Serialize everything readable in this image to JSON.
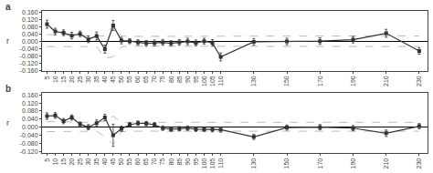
{
  "chart_data": [
    {
      "type": "line",
      "title": "a",
      "ylabel": "r",
      "x": [
        5,
        10,
        15,
        20,
        25,
        30,
        35,
        40,
        45,
        50,
        55,
        60,
        65,
        70,
        75,
        80,
        85,
        90,
        95,
        100,
        105,
        110,
        130,
        150,
        170,
        190,
        210,
        230
      ],
      "xlim": [
        2,
        235
      ],
      "xticks": [
        5,
        10,
        15,
        20,
        25,
        30,
        35,
        40,
        45,
        50,
        55,
        60,
        65,
        70,
        75,
        80,
        85,
        90,
        95,
        100,
        105,
        110,
        130,
        150,
        170,
        190,
        210,
        230
      ],
      "ylim": [
        -0.16,
        0.168
      ],
      "yticks": [
        {
          "value": 0.16,
          "label": "0.160"
        },
        {
          "value": 0.12,
          "label": "0.120"
        },
        {
          "value": 0.08,
          "label": "0.080"
        },
        {
          "value": 0.04,
          "label": "0.040"
        },
        {
          "value": 0,
          "label": "0.000"
        },
        {
          "value": -0.04,
          "label": "-0.040"
        },
        {
          "value": -0.08,
          "label": "-0.080"
        },
        {
          "value": -0.12,
          "label": "-0.120"
        },
        {
          "value": -0.16,
          "label": "-0.160"
        }
      ],
      "grid": false,
      "series": [
        {
          "values": [
            0.038,
            0.038,
            0.036,
            0.034,
            0.032,
            0.03,
            0.032,
            0.03,
            0.09,
            0.03,
            0.028,
            0.028,
            0.028,
            0.028,
            0.028,
            0.028,
            0.028,
            0.028,
            0.028,
            0.028,
            0.03,
            0.03,
            0.03,
            0.028,
            0.028,
            0.03,
            0.032,
            0.03
          ],
          "color": "#bbbbbb",
          "line_style": "dashed"
        },
        {
          "values": [
            -0.028,
            -0.028,
            -0.028,
            -0.028,
            -0.026,
            -0.026,
            -0.028,
            -0.09,
            -0.085,
            -0.028,
            -0.026,
            -0.026,
            -0.026,
            -0.026,
            -0.026,
            -0.026,
            -0.026,
            -0.026,
            -0.026,
            -0.026,
            -0.026,
            -0.028,
            -0.028,
            -0.026,
            -0.026,
            -0.026,
            -0.028,
            -0.028
          ],
          "color": "#bbbbbb",
          "line_style": "dashed"
        },
        {
          "values": [
            0.095,
            0.055,
            0.048,
            0.032,
            0.042,
            0.012,
            0.03,
            -0.042,
            0.088,
            0.005,
            0.002,
            -0.005,
            -0.01,
            -0.008,
            -0.005,
            -0.01,
            -0.005,
            0.0,
            -0.008,
            0.002,
            -0.008,
            -0.085,
            -0.002,
            0.0,
            0.002,
            0.01,
            0.045,
            -0.052
          ],
          "error_upper": [
            0.022,
            0.018,
            0.016,
            0.018,
            0.015,
            0.018,
            0.022,
            0.022,
            0.028,
            0.018,
            0.014,
            0.014,
            0.016,
            0.016,
            0.016,
            0.014,
            0.016,
            0.018,
            0.016,
            0.016,
            0.018,
            0.022,
            0.018,
            0.018,
            0.018,
            0.018,
            0.022,
            0.018
          ],
          "error_lower": [
            0.022,
            0.018,
            0.016,
            0.018,
            0.015,
            0.018,
            0.022,
            0.022,
            0.028,
            0.018,
            0.014,
            0.014,
            0.016,
            0.016,
            0.016,
            0.014,
            0.016,
            0.018,
            0.016,
            0.016,
            0.018,
            0.022,
            0.018,
            0.018,
            0.018,
            0.018,
            0.022,
            0.018
          ],
          "color": "#333333",
          "marker": "square",
          "line_style": "solid"
        }
      ]
    },
    {
      "type": "line",
      "title": "b",
      "ylabel": "r",
      "x": [
        5,
        10,
        15,
        20,
        25,
        30,
        35,
        40,
        45,
        50,
        55,
        60,
        65,
        70,
        75,
        80,
        85,
        90,
        95,
        100,
        105,
        110,
        130,
        150,
        170,
        190,
        210,
        230
      ],
      "xlim": [
        2,
        235
      ],
      "xticks": [
        5,
        10,
        15,
        20,
        25,
        30,
        35,
        40,
        45,
        50,
        55,
        60,
        65,
        70,
        75,
        80,
        85,
        90,
        95,
        100,
        105,
        110,
        130,
        150,
        170,
        190,
        210,
        230
      ],
      "ylim": [
        -0.128,
        0.168
      ],
      "yticks": [
        {
          "value": 0.16,
          "label": "0.160"
        },
        {
          "value": 0.12,
          "label": "0.120"
        },
        {
          "value": 0.08,
          "label": "0.080"
        },
        {
          "value": 0.04,
          "label": "0.040"
        },
        {
          "value": 0,
          "label": "0.000"
        },
        {
          "value": -0.04,
          "label": "-0.040"
        },
        {
          "value": -0.08,
          "label": "-0.080"
        },
        {
          "value": -0.12,
          "label": "-0.120"
        }
      ],
      "grid": false,
      "series": [
        {
          "values": [
            0.028,
            0.028,
            0.026,
            0.026,
            0.024,
            0.024,
            0.024,
            0.028,
            0.055,
            0.024,
            0.024,
            0.024,
            0.024,
            0.026,
            0.024,
            0.024,
            0.024,
            0.024,
            0.024,
            0.024,
            0.024,
            0.024,
            0.024,
            0.024,
            0.024,
            0.024,
            0.024,
            0.024
          ],
          "color": "#bbbbbb",
          "line_style": "dashed"
        },
        {
          "values": [
            -0.022,
            -0.022,
            -0.022,
            -0.022,
            -0.02,
            -0.02,
            -0.02,
            -0.048,
            -0.085,
            -0.022,
            -0.02,
            -0.02,
            -0.02,
            -0.02,
            -0.02,
            -0.02,
            -0.02,
            -0.02,
            -0.02,
            -0.02,
            -0.02,
            -0.02,
            -0.02,
            -0.02,
            -0.02,
            -0.02,
            -0.02,
            -0.02
          ],
          "color": "#bbbbbb",
          "line_style": "dashed"
        },
        {
          "values": [
            0.055,
            0.058,
            0.03,
            0.048,
            0.015,
            0.0,
            0.02,
            0.048,
            -0.04,
            -0.008,
            0.012,
            0.02,
            0.018,
            0.012,
            -0.005,
            -0.01,
            -0.008,
            -0.005,
            -0.01,
            -0.01,
            -0.012,
            -0.012,
            -0.048,
            -0.002,
            0.0,
            -0.005,
            -0.03,
            0.005
          ],
          "error_upper": [
            0.016,
            0.014,
            0.013,
            0.013,
            0.011,
            0.013,
            0.016,
            0.016,
            0.055,
            0.013,
            0.011,
            0.011,
            0.011,
            0.011,
            0.011,
            0.011,
            0.011,
            0.011,
            0.011,
            0.011,
            0.011,
            0.013,
            0.013,
            0.013,
            0.013,
            0.013,
            0.016,
            0.013
          ],
          "error_lower": [
            0.016,
            0.014,
            0.013,
            0.013,
            0.011,
            0.013,
            0.016,
            0.016,
            0.055,
            0.013,
            0.011,
            0.011,
            0.011,
            0.011,
            0.011,
            0.011,
            0.011,
            0.011,
            0.011,
            0.011,
            0.011,
            0.013,
            0.013,
            0.013,
            0.013,
            0.013,
            0.016,
            0.013
          ],
          "color": "#333333",
          "marker": "square",
          "line_style": "solid"
        }
      ]
    }
  ]
}
